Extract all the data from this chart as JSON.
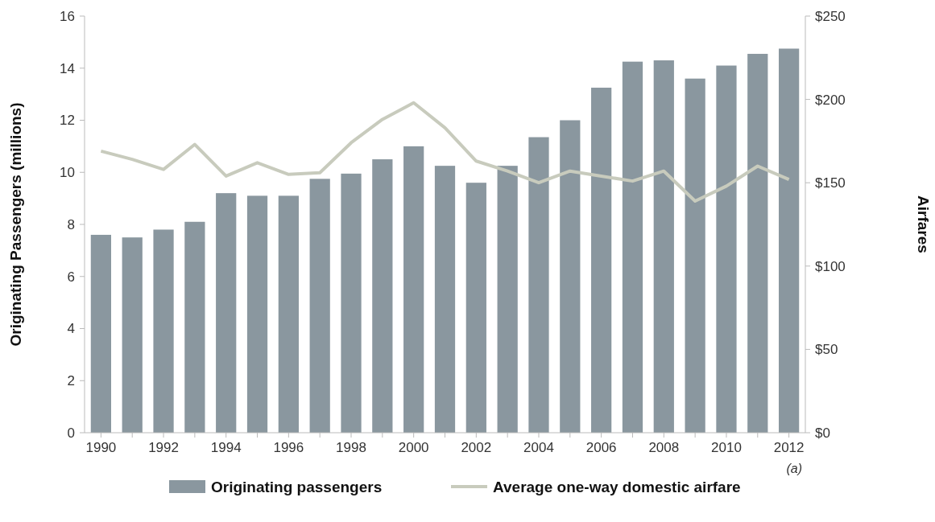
{
  "chart_data": {
    "type": "bar",
    "categories": [
      "1990",
      null,
      "1992",
      null,
      "1994",
      null,
      "1996",
      null,
      "1998",
      null,
      "2000",
      null,
      "2002",
      null,
      "2004",
      null,
      "2006",
      null,
      "2008",
      null,
      "2010",
      null,
      "2012"
    ],
    "series": [
      {
        "name": "Originating passengers",
        "color": "#8a979f",
        "values": [
          7.6,
          7.5,
          7.8,
          8.1,
          9.2,
          9.1,
          9.1,
          9.75,
          9.95,
          10.5,
          11.0,
          10.25,
          9.6,
          10.25,
          11.35,
          12.0,
          13.25,
          14.25,
          14.3,
          13.6,
          14.1,
          14.55,
          14.75
        ]
      },
      {
        "name": "Average one-way domestic airfare",
        "type": "line",
        "axis": "y2",
        "color": "#c8cbbd",
        "values": [
          169,
          164,
          158,
          173,
          154,
          162,
          155,
          156,
          174,
          188,
          198,
          183,
          163,
          157,
          150,
          157,
          154,
          151,
          157,
          139,
          148,
          160,
          152
        ]
      }
    ],
    "ylabel": "Originating Passengers (millions)",
    "y2label": "Airfares",
    "ylim": [
      0,
      16
    ],
    "yticks": [
      0,
      2,
      4,
      6,
      8,
      10,
      12,
      14,
      16
    ],
    "y2lim": [
      0,
      250
    ],
    "y2ticks": [
      {
        "value": 0,
        "label": "$0"
      },
      {
        "value": 50,
        "label": "$50"
      },
      {
        "value": 100,
        "label": "$100"
      },
      {
        "value": 150,
        "label": "$150"
      },
      {
        "value": 200,
        "label": "$200"
      },
      {
        "value": 250,
        "label": "$250"
      }
    ],
    "annotations": [
      "(a)"
    ],
    "legend": "bottom",
    "marker": "none",
    "line_style": "solid"
  }
}
